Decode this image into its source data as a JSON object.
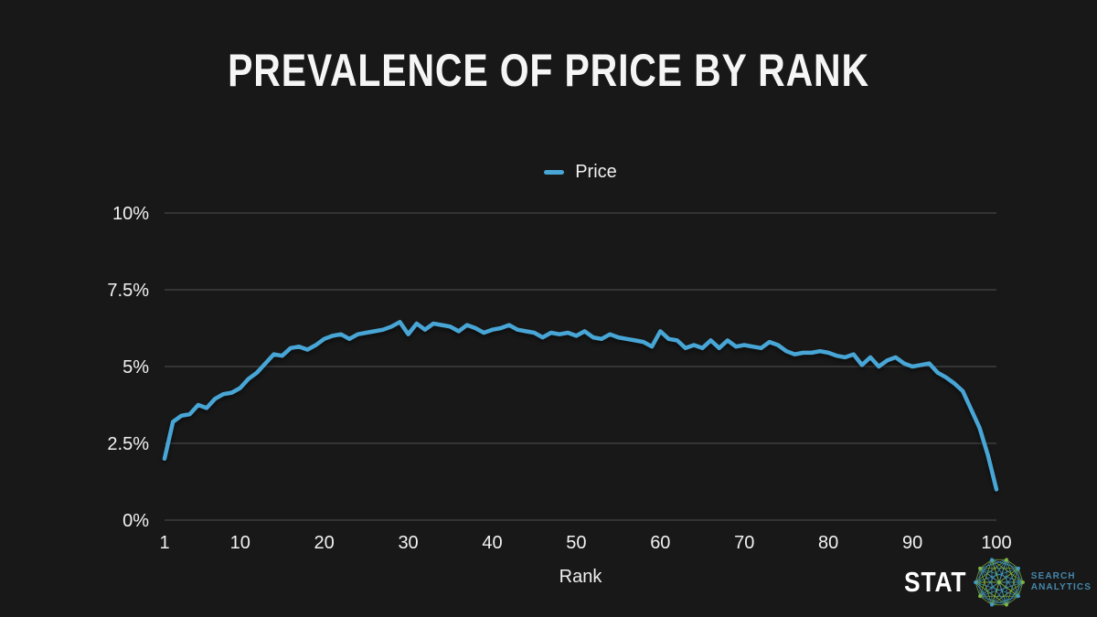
{
  "page": {
    "background": "#181818",
    "text_color": "#f0f0f0"
  },
  "chart_data": {
    "type": "line",
    "title": "PREVALENCE OF PRICE BY RANK",
    "xlabel": "Rank",
    "ylabel": "",
    "xlim": [
      1,
      100
    ],
    "ylim": [
      0,
      10
    ],
    "grid": "horizontal",
    "grid_color": "#3d3d3d",
    "legend_position": "top-center",
    "x_ticks": [
      1,
      10,
      20,
      30,
      40,
      50,
      60,
      70,
      80,
      90,
      100
    ],
    "y_ticks": [
      {
        "value": 0,
        "label": "0%"
      },
      {
        "value": 2.5,
        "label": "2.5%"
      },
      {
        "value": 5,
        "label": "5%"
      },
      {
        "value": 7.5,
        "label": "7.5%"
      },
      {
        "value": 10,
        "label": "10%"
      }
    ],
    "series": [
      {
        "name": "Price",
        "color": "#48a6d6",
        "x_start": 1,
        "x_step": 1,
        "values": [
          2.0,
          3.2,
          3.4,
          3.45,
          3.75,
          3.65,
          3.95,
          4.1,
          4.15,
          4.3,
          4.6,
          4.8,
          5.1,
          5.4,
          5.35,
          5.6,
          5.65,
          5.55,
          5.7,
          5.9,
          6.0,
          6.05,
          5.9,
          6.05,
          6.1,
          6.15,
          6.2,
          6.3,
          6.45,
          6.05,
          6.4,
          6.2,
          6.4,
          6.35,
          6.3,
          6.15,
          6.35,
          6.25,
          6.1,
          6.2,
          6.25,
          6.35,
          6.2,
          6.15,
          6.1,
          5.95,
          6.1,
          6.05,
          6.1,
          6.0,
          6.15,
          5.95,
          5.9,
          6.05,
          5.95,
          5.9,
          5.85,
          5.8,
          5.65,
          6.15,
          5.9,
          5.85,
          5.6,
          5.7,
          5.6,
          5.85,
          5.6,
          5.85,
          5.65,
          5.7,
          5.65,
          5.6,
          5.8,
          5.7,
          5.5,
          5.4,
          5.45,
          5.45,
          5.5,
          5.45,
          5.35,
          5.3,
          5.4,
          5.05,
          5.3,
          5.0,
          5.2,
          5.3,
          5.1,
          5.0,
          5.05,
          5.1,
          4.8,
          4.65,
          4.45,
          4.2,
          3.6,
          3.0,
          2.1,
          1.0
        ]
      }
    ]
  },
  "branding": {
    "name": "STAT",
    "tagline_line1": "SEARCH",
    "tagline_line2": "ANALYTICS",
    "tagline_color": "#4587ad",
    "logo_green": "#86b93f",
    "logo_blue": "#3f9fd0"
  }
}
